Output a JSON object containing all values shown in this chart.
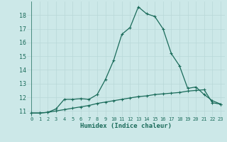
{
  "xlabel": "Humidex (Indice chaleur)",
  "bg_color": "#cce8e8",
  "grid_color": "#aad4d4",
  "line_color": "#1a6b5a",
  "xlim": [
    -0.5,
    23.5
  ],
  "ylim": [
    10.6,
    19.0
  ],
  "xticks": [
    0,
    1,
    2,
    3,
    4,
    5,
    6,
    7,
    8,
    9,
    10,
    11,
    12,
    13,
    14,
    15,
    16,
    17,
    18,
    19,
    20,
    21,
    22,
    23
  ],
  "yticks": [
    11,
    12,
    13,
    14,
    15,
    16,
    17,
    18
  ],
  "series1_x": [
    0,
    1,
    2,
    3,
    4,
    5,
    6,
    7,
    8,
    9,
    10,
    11,
    12,
    13,
    14,
    15,
    16,
    17,
    18,
    19,
    20,
    21,
    22,
    23
  ],
  "series1_y": [
    10.85,
    10.85,
    10.9,
    11.15,
    11.85,
    11.85,
    11.9,
    11.85,
    12.2,
    13.3,
    14.7,
    16.6,
    17.1,
    18.6,
    18.1,
    17.9,
    17.0,
    15.2,
    14.3,
    12.65,
    12.75,
    12.2,
    11.75,
    11.5
  ],
  "series2_x": [
    0,
    1,
    2,
    3,
    4,
    5,
    6,
    7,
    8,
    9,
    10,
    11,
    12,
    13,
    14,
    15,
    16,
    17,
    18,
    19,
    20,
    21,
    22,
    23
  ],
  "series2_y": [
    10.85,
    10.85,
    10.9,
    11.0,
    11.1,
    11.2,
    11.3,
    11.4,
    11.55,
    11.65,
    11.75,
    11.85,
    11.95,
    12.05,
    12.1,
    12.2,
    12.25,
    12.3,
    12.35,
    12.45,
    12.5,
    12.55,
    11.6,
    11.5
  ]
}
